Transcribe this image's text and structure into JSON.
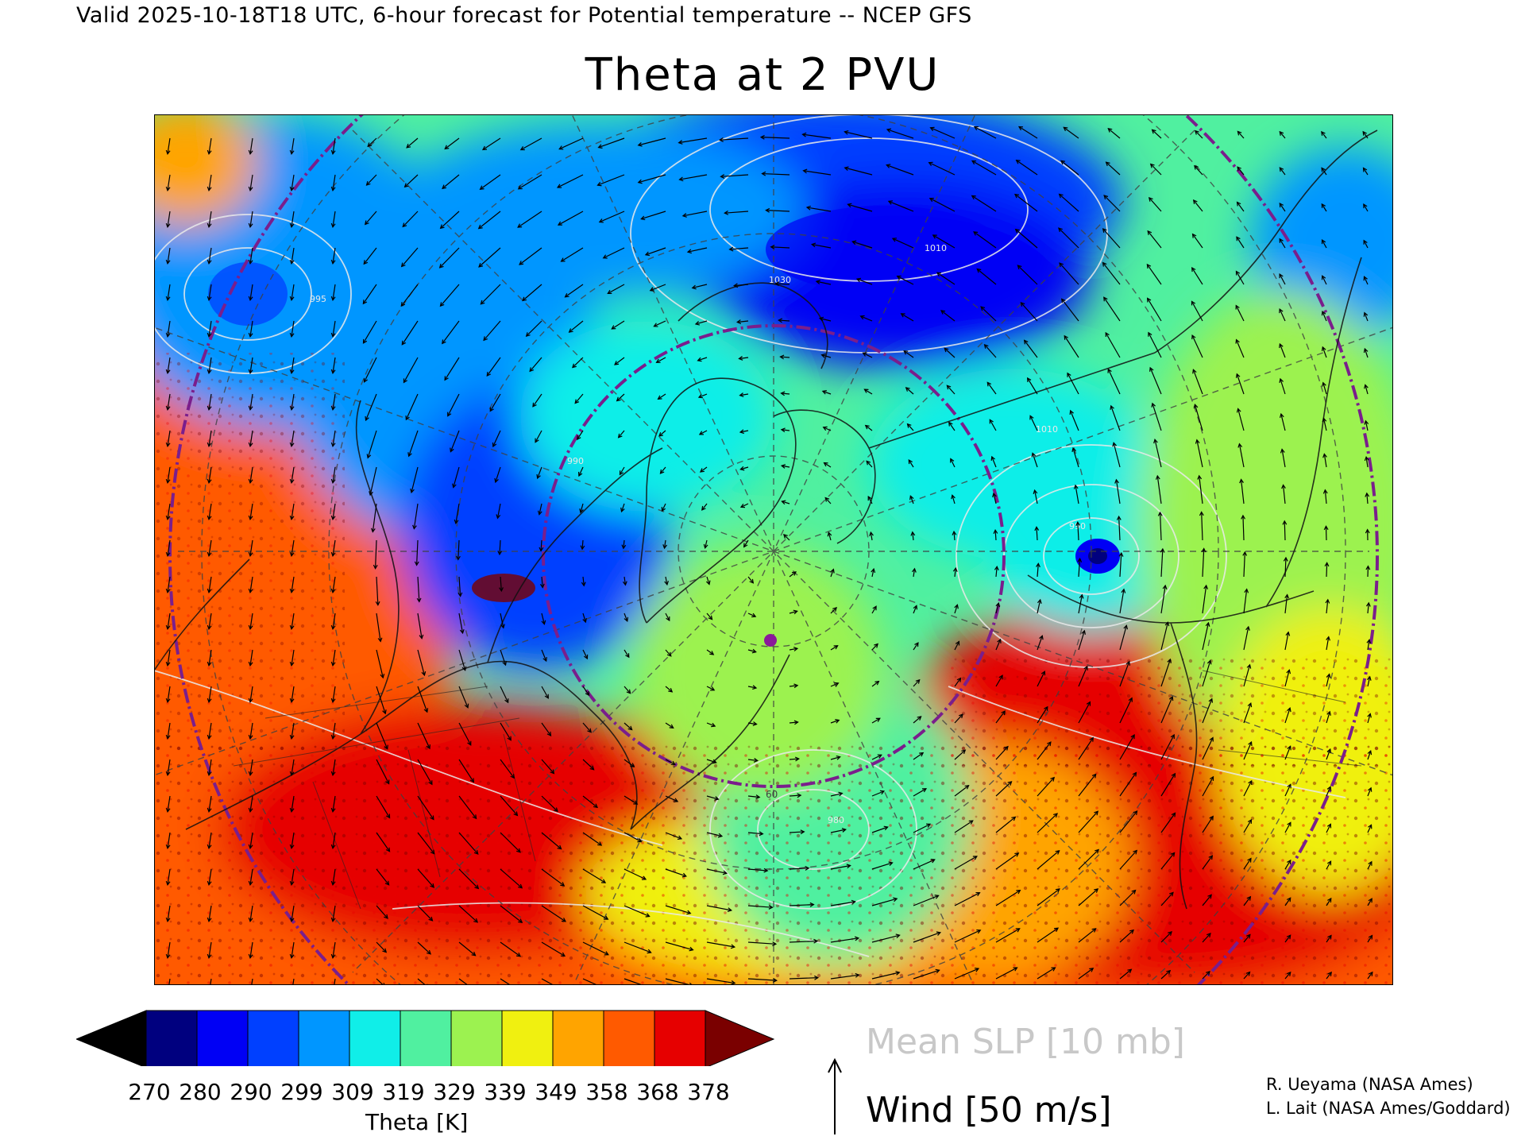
{
  "header": "Valid 2025-10-18T18 UTC, 6-hour forecast for Potential temperature -- NCEP GFS",
  "title": "Theta at 2 PVU",
  "colorbar": {
    "colors": [
      "#000000",
      "#00007f",
      "#0000f5",
      "#0040ff",
      "#0096ff",
      "#10eee8",
      "#50f0a0",
      "#9cf250",
      "#f0f010",
      "#ffa400",
      "#ff5a00",
      "#e60000",
      "#7a0000"
    ],
    "ticks": [
      "270",
      "280",
      "290",
      "299",
      "309",
      "319",
      "329",
      "339",
      "349",
      "358",
      "368",
      "378"
    ],
    "label": "Theta [K]"
  },
  "legend": {
    "slp": "Mean SLP [10 mb]",
    "wind": "Wind [50 m/s]"
  },
  "credits": {
    "line1": "R. Ueyama (NASA Ames)",
    "line2": "L. Lait (NASA Ames/Goddard)"
  },
  "map": {
    "pressure_labels": [
      "995",
      "1030",
      "1010",
      "990",
      "980",
      "1010",
      "990"
    ],
    "lat_label": "60"
  }
}
